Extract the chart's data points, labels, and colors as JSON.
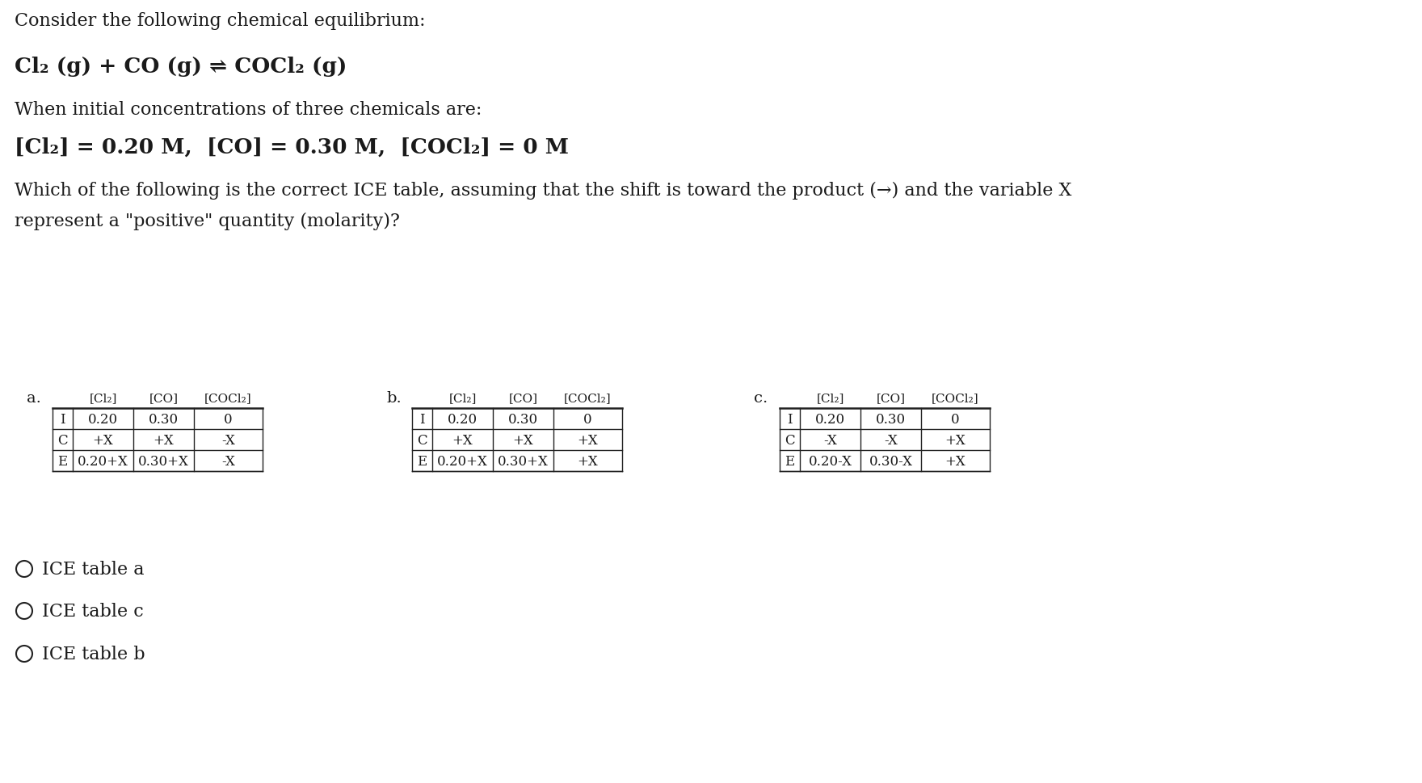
{
  "background_color": "#ffffff",
  "title_line1": "Consider the following chemical equilibrium:",
  "equation": "Cl₂ (g) + CO (g) ⇌ COCl₂ (g)",
  "line3": "When initial concentrations of three chemicals are:",
  "concentrations": "[Cl₂] = 0.20 M,  [CO] = 0.30 M,  [COCl₂] = 0 M",
  "question": "Which of the following is the correct ICE table, assuming that the shift is toward the product (→) and the variable X",
  "question2": "represent a \"positive\" quantity (molarity)?",
  "col_headers": [
    "[Cl₂]",
    "[CO]",
    "[COCl₂]"
  ],
  "row_labels": [
    "I",
    "C",
    "E"
  ],
  "table_a": [
    [
      "0.20",
      "0.30",
      "0"
    ],
    [
      "+X",
      "+X",
      "-X"
    ],
    [
      "0.20+X",
      "0.30+X",
      "-X"
    ]
  ],
  "table_b": [
    [
      "0.20",
      "0.30",
      "0"
    ],
    [
      "+X",
      "+X",
      "+X"
    ],
    [
      "0.20+X",
      "0.30+X",
      "+X"
    ]
  ],
  "table_c": [
    [
      "0.20",
      "0.30",
      "0"
    ],
    [
      "-X",
      "-X",
      "+X"
    ],
    [
      "0.20-X",
      "0.30-X",
      "+X"
    ]
  ],
  "choices": [
    "ICE table a",
    "ICE table c",
    "ICE table b"
  ],
  "font_color": "#1a1a1a",
  "table_line_color": "#222222"
}
